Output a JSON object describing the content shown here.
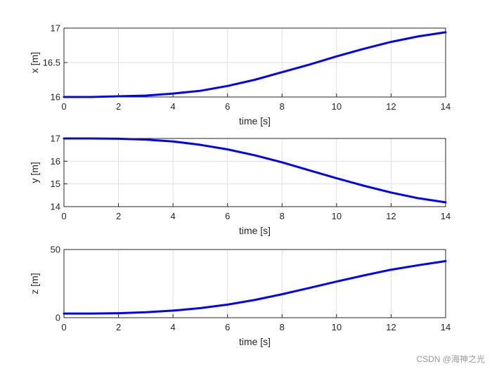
{
  "chart_data": [
    {
      "type": "line",
      "xlabel": "time [s]",
      "ylabel": "x [m]",
      "xlim": [
        0,
        14
      ],
      "ylim": [
        16,
        17
      ],
      "xticks": [
        0,
        2,
        4,
        6,
        8,
        10,
        12,
        14
      ],
      "yticks": [
        16,
        16.5,
        17
      ],
      "ytick_labels": [
        "16",
        "16.5",
        "17"
      ],
      "grid": true,
      "series": [
        {
          "color": "#0000ff",
          "x": [
            0,
            1,
            2,
            3,
            4,
            5,
            6,
            7,
            8,
            9,
            10,
            11,
            12,
            13,
            14
          ],
          "y": [
            16.0,
            16.0,
            16.01,
            16.02,
            16.05,
            16.09,
            16.16,
            16.25,
            16.36,
            16.47,
            16.59,
            16.7,
            16.8,
            16.88,
            16.94
          ]
        }
      ]
    },
    {
      "type": "line",
      "xlabel": "time [s]",
      "ylabel": "y [m]",
      "xlim": [
        0,
        14
      ],
      "ylim": [
        14,
        17
      ],
      "xticks": [
        0,
        2,
        4,
        6,
        8,
        10,
        12,
        14
      ],
      "yticks": [
        14,
        15,
        16,
        17
      ],
      "ytick_labels": [
        "14",
        "15",
        "16",
        "17"
      ],
      "grid": true,
      "series": [
        {
          "color": "#0000ff",
          "x": [
            0,
            1,
            2,
            3,
            4,
            5,
            6,
            7,
            8,
            9,
            10,
            11,
            12,
            13,
            14
          ],
          "y": [
            17.0,
            17.0,
            16.99,
            16.95,
            16.87,
            16.72,
            16.52,
            16.26,
            15.95,
            15.6,
            15.25,
            14.92,
            14.62,
            14.37,
            14.19
          ]
        }
      ]
    },
    {
      "type": "line",
      "xlabel": "time [s]",
      "ylabel": "z [m]",
      "xlim": [
        0,
        14
      ],
      "ylim": [
        0,
        50
      ],
      "xticks": [
        0,
        2,
        4,
        6,
        8,
        10,
        12,
        14
      ],
      "yticks": [
        0,
        50
      ],
      "ytick_labels": [
        "0",
        "50"
      ],
      "grid": true,
      "series": [
        {
          "color": "#0000ff",
          "x": [
            0,
            1,
            2,
            3,
            4,
            5,
            6,
            7,
            8,
            9,
            10,
            11,
            12,
            13,
            14
          ],
          "y": [
            3.0,
            3.0,
            3.3,
            4.0,
            5.2,
            7.0,
            9.6,
            13.0,
            17.2,
            21.8,
            26.5,
            31.0,
            35.2,
            38.5,
            41.5
          ]
        }
      ]
    }
  ],
  "watermark": "CSDN @海神之光"
}
